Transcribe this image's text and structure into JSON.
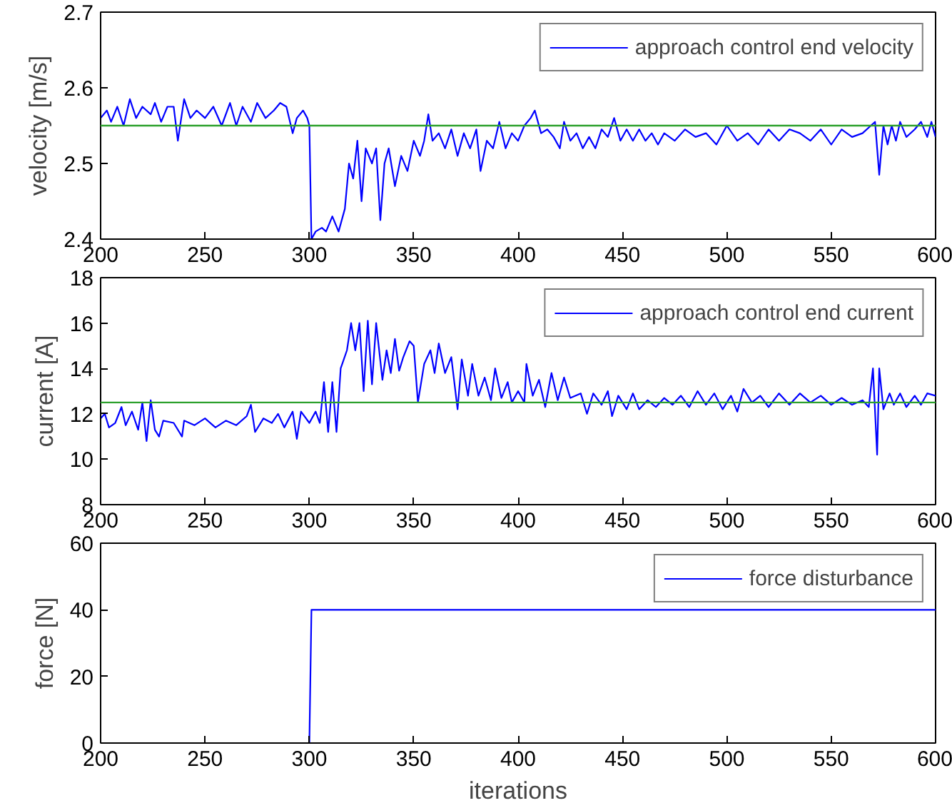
{
  "chart_data": [
    {
      "type": "line",
      "ylabel": "velocity [m/s]",
      "xlim": [
        200,
        600
      ],
      "xticks": [
        200,
        250,
        300,
        350,
        400,
        450,
        500,
        550,
        600
      ],
      "ylim": [
        2.4,
        2.7
      ],
      "yticks": [
        2.4,
        2.5,
        2.6,
        2.7
      ],
      "grid": false,
      "legend": "top right",
      "marker": "none",
      "line_style": "solid",
      "ref_lines": [
        {
          "axis": "y",
          "value": 2.55,
          "color": "#2ca02c"
        }
      ],
      "series": [
        {
          "name": "approach control end velocity",
          "color": "#0000ff",
          "x": [
            200,
            203,
            205,
            208,
            211,
            214,
            217,
            220,
            224,
            226,
            229,
            232,
            235,
            237,
            240,
            243,
            246,
            250,
            254,
            258,
            262,
            265,
            268,
            272,
            275,
            279,
            283,
            286,
            289,
            292,
            294,
            297,
            299,
            300,
            301,
            303,
            306,
            308,
            311,
            314,
            317,
            319,
            321,
            323,
            325,
            327,
            330,
            332,
            334,
            336,
            338,
            341,
            344,
            347,
            350,
            353,
            355,
            357,
            359,
            362,
            365,
            368,
            371,
            374,
            377,
            380,
            382,
            385,
            388,
            391,
            394,
            397,
            400,
            403,
            406,
            408,
            411,
            414,
            417,
            420,
            422,
            425,
            428,
            431,
            434,
            437,
            440,
            443,
            446,
            449,
            452,
            455,
            458,
            461,
            464,
            467,
            470,
            475,
            480,
            485,
            490,
            495,
            500,
            505,
            510,
            515,
            520,
            525,
            530,
            535,
            540,
            545,
            550,
            555,
            560,
            565,
            569,
            571,
            573,
            575,
            577,
            579,
            581,
            583,
            586,
            590,
            593,
            596,
            598,
            600
          ],
          "values": [
            2.56,
            2.57,
            2.555,
            2.575,
            2.55,
            2.585,
            2.56,
            2.575,
            2.565,
            2.58,
            2.555,
            2.575,
            2.575,
            2.53,
            2.585,
            2.56,
            2.57,
            2.56,
            2.575,
            2.55,
            2.58,
            2.55,
            2.575,
            2.555,
            2.58,
            2.56,
            2.57,
            2.58,
            2.575,
            2.54,
            2.56,
            2.57,
            2.56,
            2.55,
            2.4,
            2.41,
            2.415,
            2.41,
            2.43,
            2.41,
            2.44,
            2.5,
            2.48,
            2.53,
            2.45,
            2.52,
            2.5,
            2.52,
            2.425,
            2.5,
            2.52,
            2.47,
            2.51,
            2.49,
            2.53,
            2.51,
            2.53,
            2.565,
            2.53,
            2.54,
            2.52,
            2.545,
            2.51,
            2.54,
            2.52,
            2.545,
            2.49,
            2.53,
            2.52,
            2.555,
            2.52,
            2.54,
            2.53,
            2.55,
            2.56,
            2.57,
            2.54,
            2.545,
            2.535,
            2.52,
            2.555,
            2.53,
            2.54,
            2.52,
            2.535,
            2.52,
            2.545,
            2.535,
            2.56,
            2.53,
            2.545,
            2.53,
            2.545,
            2.53,
            2.54,
            2.525,
            2.54,
            2.53,
            2.545,
            2.535,
            2.54,
            2.525,
            2.55,
            2.53,
            2.54,
            2.525,
            2.545,
            2.53,
            2.545,
            2.54,
            2.53,
            2.545,
            2.525,
            2.545,
            2.535,
            2.54,
            2.55,
            2.555,
            2.485,
            2.55,
            2.525,
            2.55,
            2.53,
            2.555,
            2.535,
            2.545,
            2.555,
            2.535,
            2.555,
            2.535
          ]
        }
      ]
    },
    {
      "type": "line",
      "ylabel": "current [A]",
      "xlim": [
        200,
        600
      ],
      "xticks": [
        200,
        250,
        300,
        350,
        400,
        450,
        500,
        550,
        600
      ],
      "ylim": [
        8,
        18
      ],
      "yticks": [
        8,
        10,
        12,
        14,
        16,
        18
      ],
      "grid": false,
      "legend": "top right",
      "marker": "none",
      "line_style": "solid",
      "ref_lines": [
        {
          "axis": "y",
          "value": 12.5,
          "color": "#2ca02c"
        }
      ],
      "series": [
        {
          "name": "approach control end current",
          "color": "#0000ff",
          "x": [
            200,
            202,
            204,
            207,
            210,
            212,
            215,
            218,
            220,
            222,
            224,
            226,
            228,
            230,
            235,
            239,
            240,
            245,
            250,
            255,
            260,
            265,
            270,
            272,
            274,
            278,
            282,
            285,
            288,
            292,
            294,
            296,
            300,
            303,
            305,
            307,
            309,
            311,
            313,
            315,
            318,
            320,
            322,
            324,
            326,
            328,
            330,
            332,
            335,
            337,
            339,
            341,
            343,
            345,
            348,
            350,
            352,
            355,
            358,
            360,
            362,
            365,
            368,
            371,
            373,
            376,
            378,
            381,
            384,
            387,
            389,
            392,
            395,
            397,
            400,
            403,
            404,
            407,
            410,
            413,
            416,
            419,
            422,
            425,
            430,
            433,
            436,
            440,
            443,
            445,
            448,
            452,
            455,
            458,
            462,
            466,
            470,
            474,
            478,
            482,
            486,
            490,
            494,
            498,
            502,
            505,
            508,
            512,
            516,
            520,
            525,
            530,
            535,
            540,
            545,
            550,
            555,
            560,
            565,
            568,
            570,
            572,
            573,
            575,
            578,
            580,
            583,
            586,
            590,
            593,
            596,
            600
          ],
          "values": [
            11.8,
            12,
            11.4,
            11.6,
            12.3,
            11.5,
            12.1,
            11.3,
            12.5,
            10.8,
            12.6,
            11.3,
            11.0,
            11.7,
            11.6,
            11.0,
            11.7,
            11.5,
            11.8,
            11.4,
            11.7,
            11.5,
            11.9,
            12.4,
            11.2,
            11.8,
            11.6,
            12.0,
            11.4,
            12.1,
            10.9,
            12.1,
            11.6,
            12.1,
            11.6,
            13.4,
            11.2,
            13.4,
            11.2,
            14.0,
            14.8,
            16.0,
            14.8,
            16.0,
            13.0,
            16.1,
            13.3,
            16.0,
            13.5,
            14.8,
            13.8,
            15.3,
            13.9,
            14.5,
            15.2,
            15.0,
            12.5,
            14.2,
            14.8,
            13.8,
            15.1,
            13.8,
            14.5,
            12.2,
            14.4,
            12.8,
            14.2,
            12.8,
            13.6,
            12.6,
            14.0,
            12.7,
            13.4,
            12.5,
            13.0,
            12.5,
            14.2,
            12.8,
            13.5,
            12.3,
            13.8,
            12.6,
            13.6,
            12.7,
            12.9,
            12.0,
            12.9,
            12.4,
            13.0,
            11.9,
            12.8,
            12.2,
            12.9,
            12.2,
            12.6,
            12.3,
            12.7,
            12.4,
            12.8,
            12.3,
            13.0,
            12.4,
            12.9,
            12.2,
            12.8,
            12.1,
            13.1,
            12.5,
            12.8,
            12.3,
            12.9,
            12.4,
            12.9,
            12.5,
            12.8,
            12.4,
            12.7,
            12.4,
            12.6,
            12.3,
            14.0,
            10.2,
            14.0,
            12.2,
            12.9,
            12.4,
            12.9,
            12.3,
            12.8,
            12.4,
            12.9,
            12.8
          ]
        }
      ]
    },
    {
      "type": "line",
      "ylabel": "force [N]",
      "xlabel": "iterations",
      "xlim": [
        200,
        600
      ],
      "xticks": [
        200,
        250,
        300,
        350,
        400,
        450,
        500,
        550,
        600
      ],
      "ylim": [
        0,
        60
      ],
      "yticks": [
        0,
        20,
        40,
        60
      ],
      "grid": false,
      "legend": "top right",
      "marker": "none",
      "line_style": "solid",
      "series": [
        {
          "name": "force disturbance",
          "color": "#0000ff",
          "x": [
            200,
            300,
            301,
            600
          ],
          "values": [
            0,
            0,
            40,
            40
          ]
        }
      ]
    }
  ]
}
